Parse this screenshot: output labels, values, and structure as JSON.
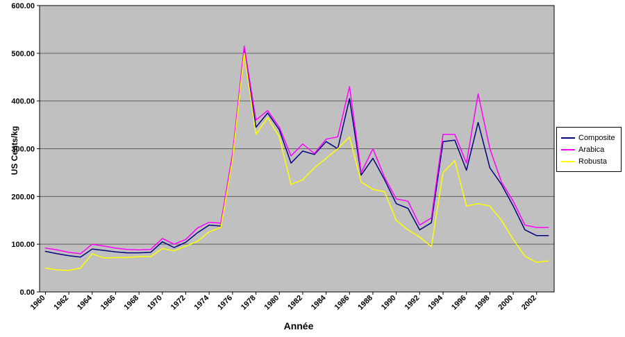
{
  "chart_data": {
    "type": "line",
    "x": [
      1960,
      1961,
      1962,
      1963,
      1964,
      1965,
      1966,
      1967,
      1968,
      1969,
      1970,
      1971,
      1972,
      1973,
      1974,
      1975,
      1976,
      1977,
      1978,
      1979,
      1980,
      1981,
      1982,
      1983,
      1984,
      1985,
      1986,
      1987,
      1988,
      1989,
      1990,
      1991,
      1992,
      1993,
      1994,
      1995,
      1996,
      1997,
      1998,
      1999,
      2000,
      2001,
      2002,
      2003
    ],
    "series": [
      {
        "name": "Composite",
        "color": "#000080",
        "values": [
          85,
          80,
          76,
          73,
          90,
          87,
          84,
          82,
          82,
          83,
          105,
          93,
          104,
          124,
          140,
          138,
          280,
          505,
          345,
          375,
          340,
          270,
          295,
          288,
          315,
          300,
          405,
          245,
          280,
          235,
          185,
          175,
          130,
          145,
          315,
          318,
          255,
          355,
          260,
          225,
          180,
          130,
          118,
          118
        ]
      },
      {
        "name": "Arabica",
        "color": "#FF00FF",
        "values": [
          92,
          88,
          83,
          80,
          100,
          96,
          92,
          89,
          88,
          89,
          112,
          100,
          110,
          134,
          146,
          144,
          290,
          515,
          360,
          380,
          345,
          285,
          310,
          290,
          320,
          325,
          430,
          250,
          300,
          240,
          195,
          190,
          140,
          155,
          330,
          330,
          270,
          415,
          300,
          230,
          190,
          140,
          135,
          135
        ]
      },
      {
        "name": "Robusta",
        "color": "#FFFF00",
        "values": [
          50,
          46,
          45,
          50,
          80,
          71,
          72,
          72,
          74,
          74,
          91,
          86,
          96,
          106,
          126,
          135,
          278,
          500,
          330,
          365,
          325,
          225,
          235,
          260,
          280,
          300,
          325,
          230,
          215,
          210,
          150,
          130,
          115,
          95,
          250,
          275,
          180,
          185,
          180,
          150,
          110,
          75,
          62,
          65
        ]
      }
    ],
    "xlabel": "Année",
    "ylabel": "US Cents/kg",
    "ylim": [
      0,
      600
    ],
    "ytick_step": 100,
    "ytick_labels": [
      "0.00",
      "100.00",
      "200.00",
      "300.00",
      "400.00",
      "500.00",
      "600.00"
    ],
    "xtick_labels": [
      "1960",
      "1962",
      "1964",
      "1966",
      "1968",
      "1970",
      "1972",
      "1974",
      "1976",
      "1978",
      "1980",
      "1982",
      "1984",
      "1986",
      "1988",
      "1990",
      "1992",
      "1994",
      "1996",
      "1998",
      "2000",
      "2002"
    ],
    "xtick_every": 2,
    "plot_bg": "#c0c0c0",
    "grid_color": "#5f5f5f",
    "axis_color": "#000000",
    "legend_position": "right",
    "grid": true
  }
}
